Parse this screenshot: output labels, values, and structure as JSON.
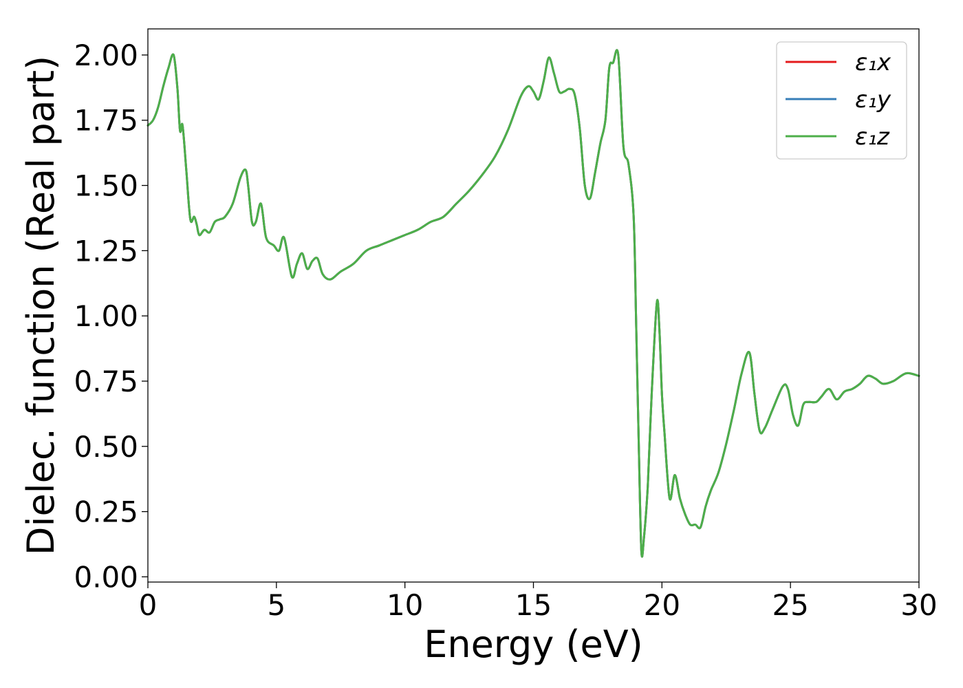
{
  "chart_data": {
    "type": "line",
    "title": "",
    "xlabel": "Energy (eV)",
    "ylabel": "Dielec. function (Real part)",
    "xlim": [
      0,
      30
    ],
    "ylim": [
      -0.02,
      2.1
    ],
    "xticks": [
      0,
      5,
      10,
      15,
      20,
      25,
      30
    ],
    "xtick_labels": [
      "0",
      "5",
      "10",
      "15",
      "20",
      "25",
      "30"
    ],
    "yticks": [
      0.0,
      0.25,
      0.5,
      0.75,
      1.0,
      1.25,
      1.5,
      1.75,
      2.0
    ],
    "ytick_labels": [
      "0.00",
      "0.25",
      "0.50",
      "0.75",
      "1.00",
      "1.25",
      "1.50",
      "1.75",
      "2.00"
    ],
    "grid": false,
    "legend_position": "top-right",
    "x": [
      0.0,
      0.2,
      0.4,
      0.6,
      0.8,
      1.0,
      1.15,
      1.25,
      1.35,
      1.5,
      1.65,
      1.8,
      1.9,
      2.0,
      2.2,
      2.4,
      2.6,
      2.8,
      3.0,
      3.3,
      3.6,
      3.8,
      3.9,
      4.05,
      4.2,
      4.4,
      4.6,
      4.9,
      5.1,
      5.3,
      5.6,
      5.8,
      6.0,
      6.2,
      6.4,
      6.6,
      6.8,
      7.1,
      7.5,
      8.0,
      8.5,
      9.0,
      9.5,
      10.0,
      10.5,
      11.0,
      11.5,
      12.0,
      12.5,
      13.0,
      13.5,
      14.0,
      14.5,
      14.8,
      15.0,
      15.2,
      15.4,
      15.6,
      15.8,
      16.0,
      16.2,
      16.4,
      16.6,
      16.8,
      17.0,
      17.2,
      17.4,
      17.6,
      17.8,
      17.95,
      18.1,
      18.3,
      18.5,
      18.7,
      18.9,
      19.0,
      19.1,
      19.2,
      19.3,
      19.45,
      19.6,
      19.8,
      19.9,
      20.0,
      20.1,
      20.3,
      20.5,
      20.7,
      20.9,
      21.1,
      21.3,
      21.5,
      21.7,
      21.9,
      22.2,
      22.5,
      22.8,
      23.1,
      23.4,
      23.6,
      23.8,
      24.0,
      24.3,
      24.7,
      24.9,
      25.1,
      25.3,
      25.5,
      25.7,
      26.0,
      26.2,
      26.5,
      26.8,
      27.1,
      27.4,
      27.7,
      28.0,
      28.3,
      28.6,
      29.0,
      29.5,
      30.0
    ],
    "series": [
      {
        "name": "ε₁x",
        "color": "#e41a1c",
        "y": [
          1.73,
          1.75,
          1.8,
          1.88,
          1.95,
          2.0,
          1.87,
          1.71,
          1.73,
          1.55,
          1.37,
          1.38,
          1.35,
          1.31,
          1.33,
          1.32,
          1.36,
          1.37,
          1.38,
          1.43,
          1.53,
          1.56,
          1.5,
          1.36,
          1.36,
          1.43,
          1.3,
          1.27,
          1.25,
          1.3,
          1.15,
          1.2,
          1.24,
          1.18,
          1.21,
          1.22,
          1.16,
          1.14,
          1.17,
          1.2,
          1.25,
          1.27,
          1.29,
          1.31,
          1.33,
          1.36,
          1.38,
          1.43,
          1.48,
          1.54,
          1.61,
          1.71,
          1.84,
          1.88,
          1.86,
          1.83,
          1.9,
          1.99,
          1.93,
          1.86,
          1.86,
          1.87,
          1.85,
          1.72,
          1.5,
          1.45,
          1.55,
          1.66,
          1.75,
          1.95,
          1.97,
          2.0,
          1.65,
          1.58,
          1.38,
          0.95,
          0.5,
          0.1,
          0.15,
          0.35,
          0.7,
          1.05,
          0.95,
          0.7,
          0.55,
          0.3,
          0.39,
          0.3,
          0.24,
          0.2,
          0.2,
          0.19,
          0.27,
          0.33,
          0.4,
          0.51,
          0.64,
          0.78,
          0.86,
          0.7,
          0.56,
          0.57,
          0.64,
          0.73,
          0.72,
          0.62,
          0.58,
          0.66,
          0.67,
          0.67,
          0.69,
          0.72,
          0.68,
          0.71,
          0.72,
          0.74,
          0.77,
          0.76,
          0.74,
          0.75,
          0.78,
          0.77
        ]
      },
      {
        "name": "ε₁y",
        "color": "#377eb8",
        "y": [
          1.73,
          1.75,
          1.8,
          1.88,
          1.95,
          2.0,
          1.87,
          1.71,
          1.73,
          1.55,
          1.37,
          1.38,
          1.35,
          1.31,
          1.33,
          1.32,
          1.36,
          1.37,
          1.38,
          1.43,
          1.53,
          1.56,
          1.5,
          1.36,
          1.36,
          1.43,
          1.3,
          1.27,
          1.25,
          1.3,
          1.15,
          1.2,
          1.24,
          1.18,
          1.21,
          1.22,
          1.16,
          1.14,
          1.17,
          1.2,
          1.25,
          1.27,
          1.29,
          1.31,
          1.33,
          1.36,
          1.38,
          1.43,
          1.48,
          1.54,
          1.61,
          1.71,
          1.84,
          1.88,
          1.86,
          1.83,
          1.9,
          1.99,
          1.93,
          1.86,
          1.86,
          1.87,
          1.85,
          1.72,
          1.5,
          1.45,
          1.55,
          1.66,
          1.75,
          1.95,
          1.97,
          2.0,
          1.65,
          1.58,
          1.38,
          0.95,
          0.5,
          0.1,
          0.15,
          0.35,
          0.7,
          1.05,
          0.95,
          0.7,
          0.55,
          0.3,
          0.39,
          0.3,
          0.24,
          0.2,
          0.2,
          0.19,
          0.27,
          0.33,
          0.4,
          0.51,
          0.64,
          0.78,
          0.86,
          0.7,
          0.56,
          0.57,
          0.64,
          0.73,
          0.72,
          0.62,
          0.58,
          0.66,
          0.67,
          0.67,
          0.69,
          0.72,
          0.68,
          0.71,
          0.72,
          0.74,
          0.77,
          0.76,
          0.74,
          0.75,
          0.78,
          0.77
        ]
      },
      {
        "name": "ε₁z",
        "color": "#4daf4a",
        "y": [
          1.73,
          1.75,
          1.8,
          1.88,
          1.95,
          2.0,
          1.87,
          1.71,
          1.73,
          1.55,
          1.37,
          1.38,
          1.35,
          1.31,
          1.33,
          1.32,
          1.36,
          1.37,
          1.38,
          1.43,
          1.53,
          1.56,
          1.5,
          1.36,
          1.36,
          1.43,
          1.3,
          1.27,
          1.25,
          1.3,
          1.15,
          1.2,
          1.24,
          1.18,
          1.21,
          1.22,
          1.16,
          1.14,
          1.17,
          1.2,
          1.25,
          1.27,
          1.29,
          1.31,
          1.33,
          1.36,
          1.38,
          1.43,
          1.48,
          1.54,
          1.61,
          1.71,
          1.84,
          1.88,
          1.86,
          1.83,
          1.9,
          1.99,
          1.93,
          1.86,
          1.86,
          1.87,
          1.85,
          1.72,
          1.5,
          1.45,
          1.55,
          1.66,
          1.75,
          1.95,
          1.97,
          2.0,
          1.65,
          1.58,
          1.38,
          0.95,
          0.5,
          0.1,
          0.15,
          0.35,
          0.7,
          1.05,
          0.95,
          0.7,
          0.55,
          0.3,
          0.39,
          0.3,
          0.24,
          0.2,
          0.2,
          0.19,
          0.27,
          0.33,
          0.4,
          0.51,
          0.64,
          0.78,
          0.86,
          0.7,
          0.56,
          0.57,
          0.64,
          0.73,
          0.72,
          0.62,
          0.58,
          0.66,
          0.67,
          0.67,
          0.69,
          0.72,
          0.68,
          0.71,
          0.72,
          0.74,
          0.77,
          0.76,
          0.74,
          0.75,
          0.78,
          0.77
        ]
      }
    ]
  }
}
